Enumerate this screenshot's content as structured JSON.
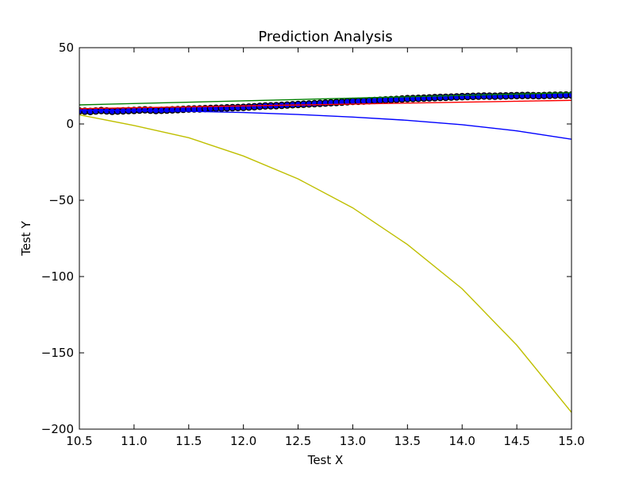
{
  "chart_data": {
    "type": "scatter",
    "title": "Prediction Analysis",
    "xlabel": "Test X",
    "ylabel": "Test Y",
    "xlim": [
      10.5,
      15.0
    ],
    "ylim": [
      -200,
      50
    ],
    "x_ticks": [
      10.5,
      11.0,
      11.5,
      12.0,
      12.5,
      13.0,
      13.5,
      14.0,
      14.5,
      15.0
    ],
    "x_tick_labels": [
      "10.5",
      "11.0",
      "11.5",
      "12.0",
      "12.5",
      "13.0",
      "13.5",
      "14.0",
      "14.5",
      "15.0"
    ],
    "y_ticks": [
      50,
      0,
      -50,
      -100,
      -150,
      -200
    ],
    "y_tick_labels": [
      "50",
      "0",
      "−50",
      "−100",
      "−150",
      "−200"
    ],
    "grid": false,
    "legend": "none",
    "scatter_series": [
      {
        "marker": "circle",
        "color": "#0000ff",
        "edge_color": "#000000",
        "x": [
          10.5,
          10.6,
          10.7,
          10.8,
          10.9,
          11.0,
          11.1,
          11.2,
          11.3,
          11.4,
          11.5,
          11.6,
          11.7,
          11.8,
          11.9,
          12.0,
          12.1,
          12.2,
          12.3,
          12.4,
          12.5,
          12.6,
          12.7,
          12.8,
          12.9,
          13.0,
          13.1,
          13.2,
          13.3,
          13.4,
          13.5,
          13.6,
          13.7,
          13.8,
          13.9,
          14.0,
          14.1,
          14.2,
          14.3,
          14.4,
          14.5,
          14.6,
          14.7,
          14.8,
          14.9,
          15.0
        ],
        "y": [
          8.5,
          8.2,
          8.8,
          8.3,
          8.6,
          8.9,
          9.3,
          8.8,
          9.1,
          9.4,
          9.8,
          9.9,
          10.2,
          10.4,
          10.7,
          10.9,
          11.3,
          11.8,
          12.0,
          12.4,
          12.8,
          13.1,
          13.5,
          13.9,
          14.3,
          14.8,
          15.0,
          15.4,
          15.8,
          16.1,
          16.6,
          16.8,
          17.1,
          17.4,
          17.6,
          17.9,
          18.1,
          18.3,
          18.2,
          18.4,
          18.6,
          18.7,
          18.5,
          18.8,
          18.9,
          19.0
        ]
      }
    ],
    "line_series": [
      {
        "color": "#008000",
        "x": [
          10.5,
          15.0
        ],
        "y": [
          12.5,
          20.5
        ]
      },
      {
        "color": "#ff0000",
        "x": [
          10.5,
          15.0
        ],
        "y": [
          10.0,
          15.5
        ]
      },
      {
        "color": "#0000ff",
        "x": [
          10.5,
          11.0,
          11.5,
          12.0,
          12.5,
          13.0,
          13.5,
          14.0,
          14.5,
          15.0
        ],
        "y": [
          9.0,
          8.8,
          8.3,
          7.5,
          6.2,
          4.5,
          2.4,
          -0.5,
          -4.5,
          -10.0
        ]
      },
      {
        "color": "#bfbf00",
        "x": [
          10.5,
          11.0,
          11.5,
          12.0,
          12.5,
          13.0,
          13.5,
          14.0,
          14.5,
          15.0
        ],
        "y": [
          6.0,
          -1.0,
          -9.0,
          -21.0,
          -36.0,
          -55.0,
          -79.0,
          -108.0,
          -145.0,
          -189.0
        ]
      }
    ]
  }
}
